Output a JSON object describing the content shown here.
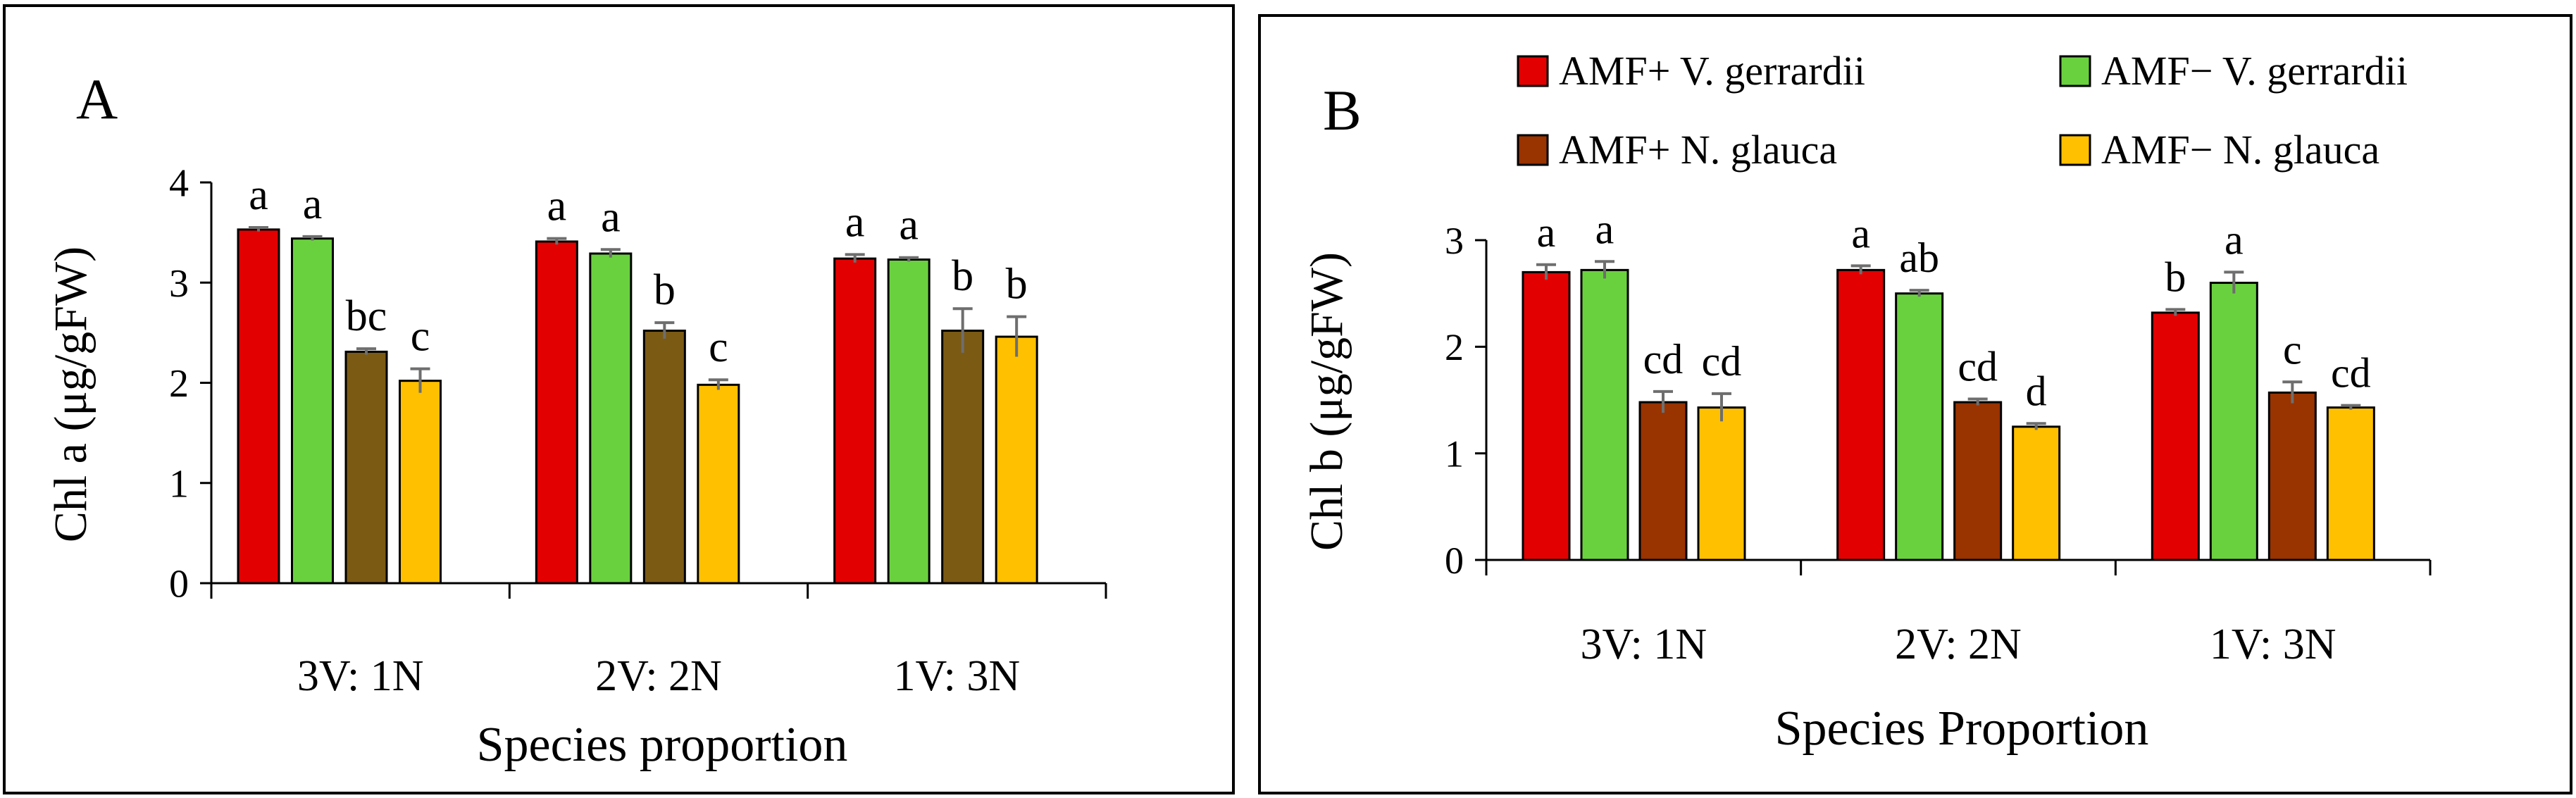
{
  "chart_data": [
    {
      "type": "bar",
      "panel_letter": "A",
      "title": "",
      "xlabel": "Species proportion",
      "ylabel": "Chl a (μg/gFW)",
      "ylim": [
        0,
        4
      ],
      "yticks": [
        "0",
        "1",
        "2",
        "3",
        "4"
      ],
      "grid": false,
      "legend": "none",
      "categories": [
        "3V: 1N",
        "2V: 2N",
        "1V: 3N"
      ],
      "series": [
        {
          "name": "AMF+ V. gerrardii",
          "color": "#e30000",
          "values": [
            3.53,
            3.41,
            3.24
          ],
          "errors": [
            0.02,
            0.03,
            0.04
          ],
          "letters": [
            "a",
            "a",
            "a"
          ]
        },
        {
          "name": "AMF− V. gerrardii",
          "color": "#6ad13e",
          "values": [
            3.44,
            3.29,
            3.23
          ],
          "errors": [
            0.02,
            0.04,
            0.02
          ],
          "letters": [
            "a",
            "a",
            "a"
          ]
        },
        {
          "name": "AMF+ N. glauca",
          "color": "#7b5a14",
          "values": [
            2.31,
            2.52,
            2.52
          ],
          "errors": [
            0.03,
            0.08,
            0.22
          ],
          "letters": [
            "bc",
            "b",
            "b"
          ]
        },
        {
          "name": "AMF− N. glauca",
          "color": "#ffc000",
          "values": [
            2.02,
            1.98,
            2.46
          ],
          "errors": [
            0.12,
            0.05,
            0.2
          ],
          "letters": [
            "c",
            "c",
            "b"
          ]
        }
      ]
    },
    {
      "type": "bar",
      "panel_letter": "B",
      "title": "",
      "xlabel": "Species Proportion",
      "ylabel": "Chl b (μg/gFW)",
      "ylim": [
        0,
        3
      ],
      "yticks": [
        "0",
        "1",
        "2",
        "3"
      ],
      "grid": false,
      "legend": "top",
      "categories": [
        "3V: 1N",
        "2V: 2N",
        "1V: 3N"
      ],
      "series": [
        {
          "name": "AMF+ V. gerrardii",
          "color": "#e30000",
          "values": [
            2.7,
            2.72,
            2.32
          ],
          "errors": [
            0.07,
            0.04,
            0.03
          ],
          "letters": [
            "a",
            "a",
            "b"
          ]
        },
        {
          "name": "AMF− V. gerrardii",
          "color": "#6ad13e",
          "values": [
            2.72,
            2.5,
            2.6
          ],
          "errors": [
            0.08,
            0.03,
            0.1
          ],
          "letters": [
            "a",
            "ab",
            "a"
          ]
        },
        {
          "name": "AMF+ N. glauca",
          "color": "#993300",
          "values": [
            1.48,
            1.48,
            1.57
          ],
          "errors": [
            0.1,
            0.03,
            0.1
          ],
          "letters": [
            "cd",
            "cd",
            "c"
          ]
        },
        {
          "name": "AMF− N. glauca",
          "color": "#ffc000",
          "values": [
            1.43,
            1.25,
            1.43
          ],
          "errors": [
            0.13,
            0.03,
            0.02
          ],
          "letters": [
            "cd",
            "d",
            "cd"
          ]
        }
      ]
    }
  ]
}
